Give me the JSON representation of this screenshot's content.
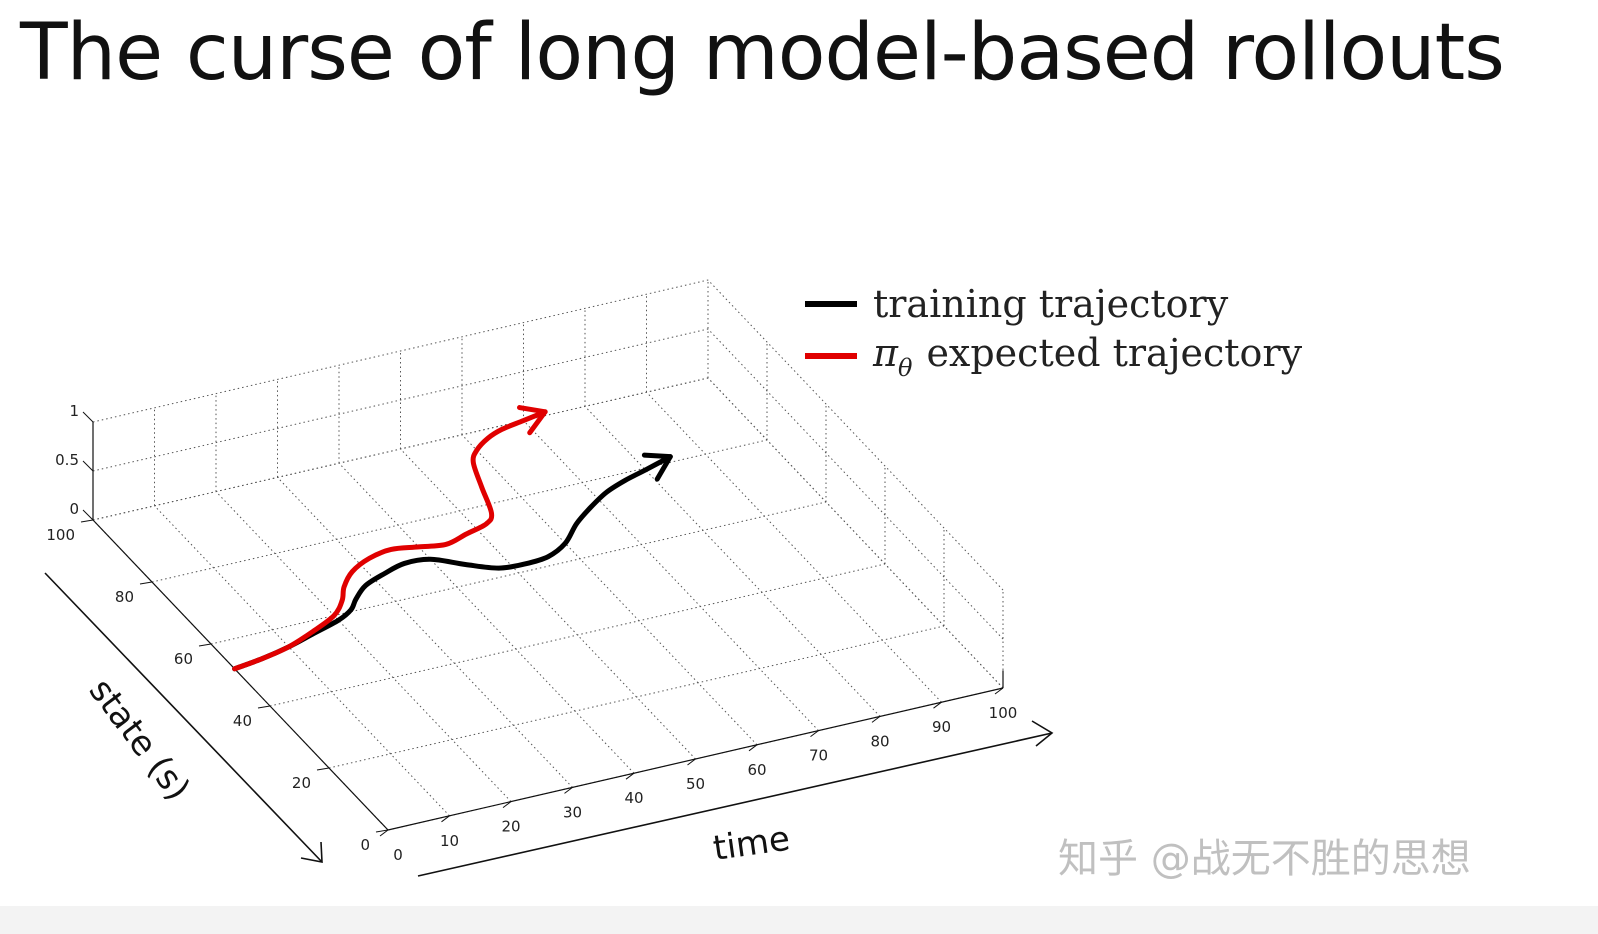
{
  "slide": {
    "title": "The curse of long model-based rollouts"
  },
  "watermark": {
    "text": "知乎 @战无不胜的思想"
  },
  "legend": {
    "training_label": "training trajectory",
    "expected_symbol": "π",
    "expected_subscript": "θ",
    "expected_label": "expected trajectory"
  },
  "chart_data": {
    "type": "line",
    "projection": "3d",
    "xlabel": "time",
    "ylabel": "state (s)",
    "xlim": [
      0,
      100
    ],
    "ylim": [
      0,
      100
    ],
    "zlim": [
      0,
      1
    ],
    "x_ticks": [
      "0",
      "10",
      "20",
      "30",
      "40",
      "50",
      "60",
      "70",
      "80",
      "90",
      "100"
    ],
    "y_ticks": [
      "0",
      "20",
      "40",
      "60",
      "80",
      "100"
    ],
    "z_ticks": [
      "0",
      "0.5",
      "1"
    ],
    "grid": true,
    "legend_position": "top-right",
    "series": [
      {
        "name": "training trajectory",
        "color": "#000000",
        "arrow_end": true,
        "x": [
          0,
          5,
          10,
          15,
          20,
          23,
          25,
          28,
          32,
          36,
          40,
          44,
          48,
          52,
          56,
          60,
          64,
          68,
          72,
          76,
          80,
          85
        ],
        "y": [
          52,
          53,
          54.5,
          56.5,
          58.5,
          60.5,
          63,
          66,
          68,
          69.5,
          69,
          65.5,
          62.5,
          62,
          62.5,
          65,
          69.5,
          73,
          76,
          78,
          79.5,
          81.5
        ]
      },
      {
        "name": "πθ expected trajectory",
        "color": "#e00000",
        "arrow_end": true,
        "x": [
          0,
          5,
          10,
          15,
          20,
          23,
          25,
          28,
          32,
          36,
          40,
          44,
          48,
          52,
          54,
          56,
          58,
          60,
          63,
          66,
          70,
          74
        ],
        "y": [
          52,
          53,
          54.5,
          57,
          60,
          63.5,
          67,
          70.5,
          73,
          74,
          73,
          72,
          73.5,
          75,
          77.5,
          85,
          92,
          95,
          97.5,
          99,
          100,
          101
        ]
      }
    ]
  }
}
